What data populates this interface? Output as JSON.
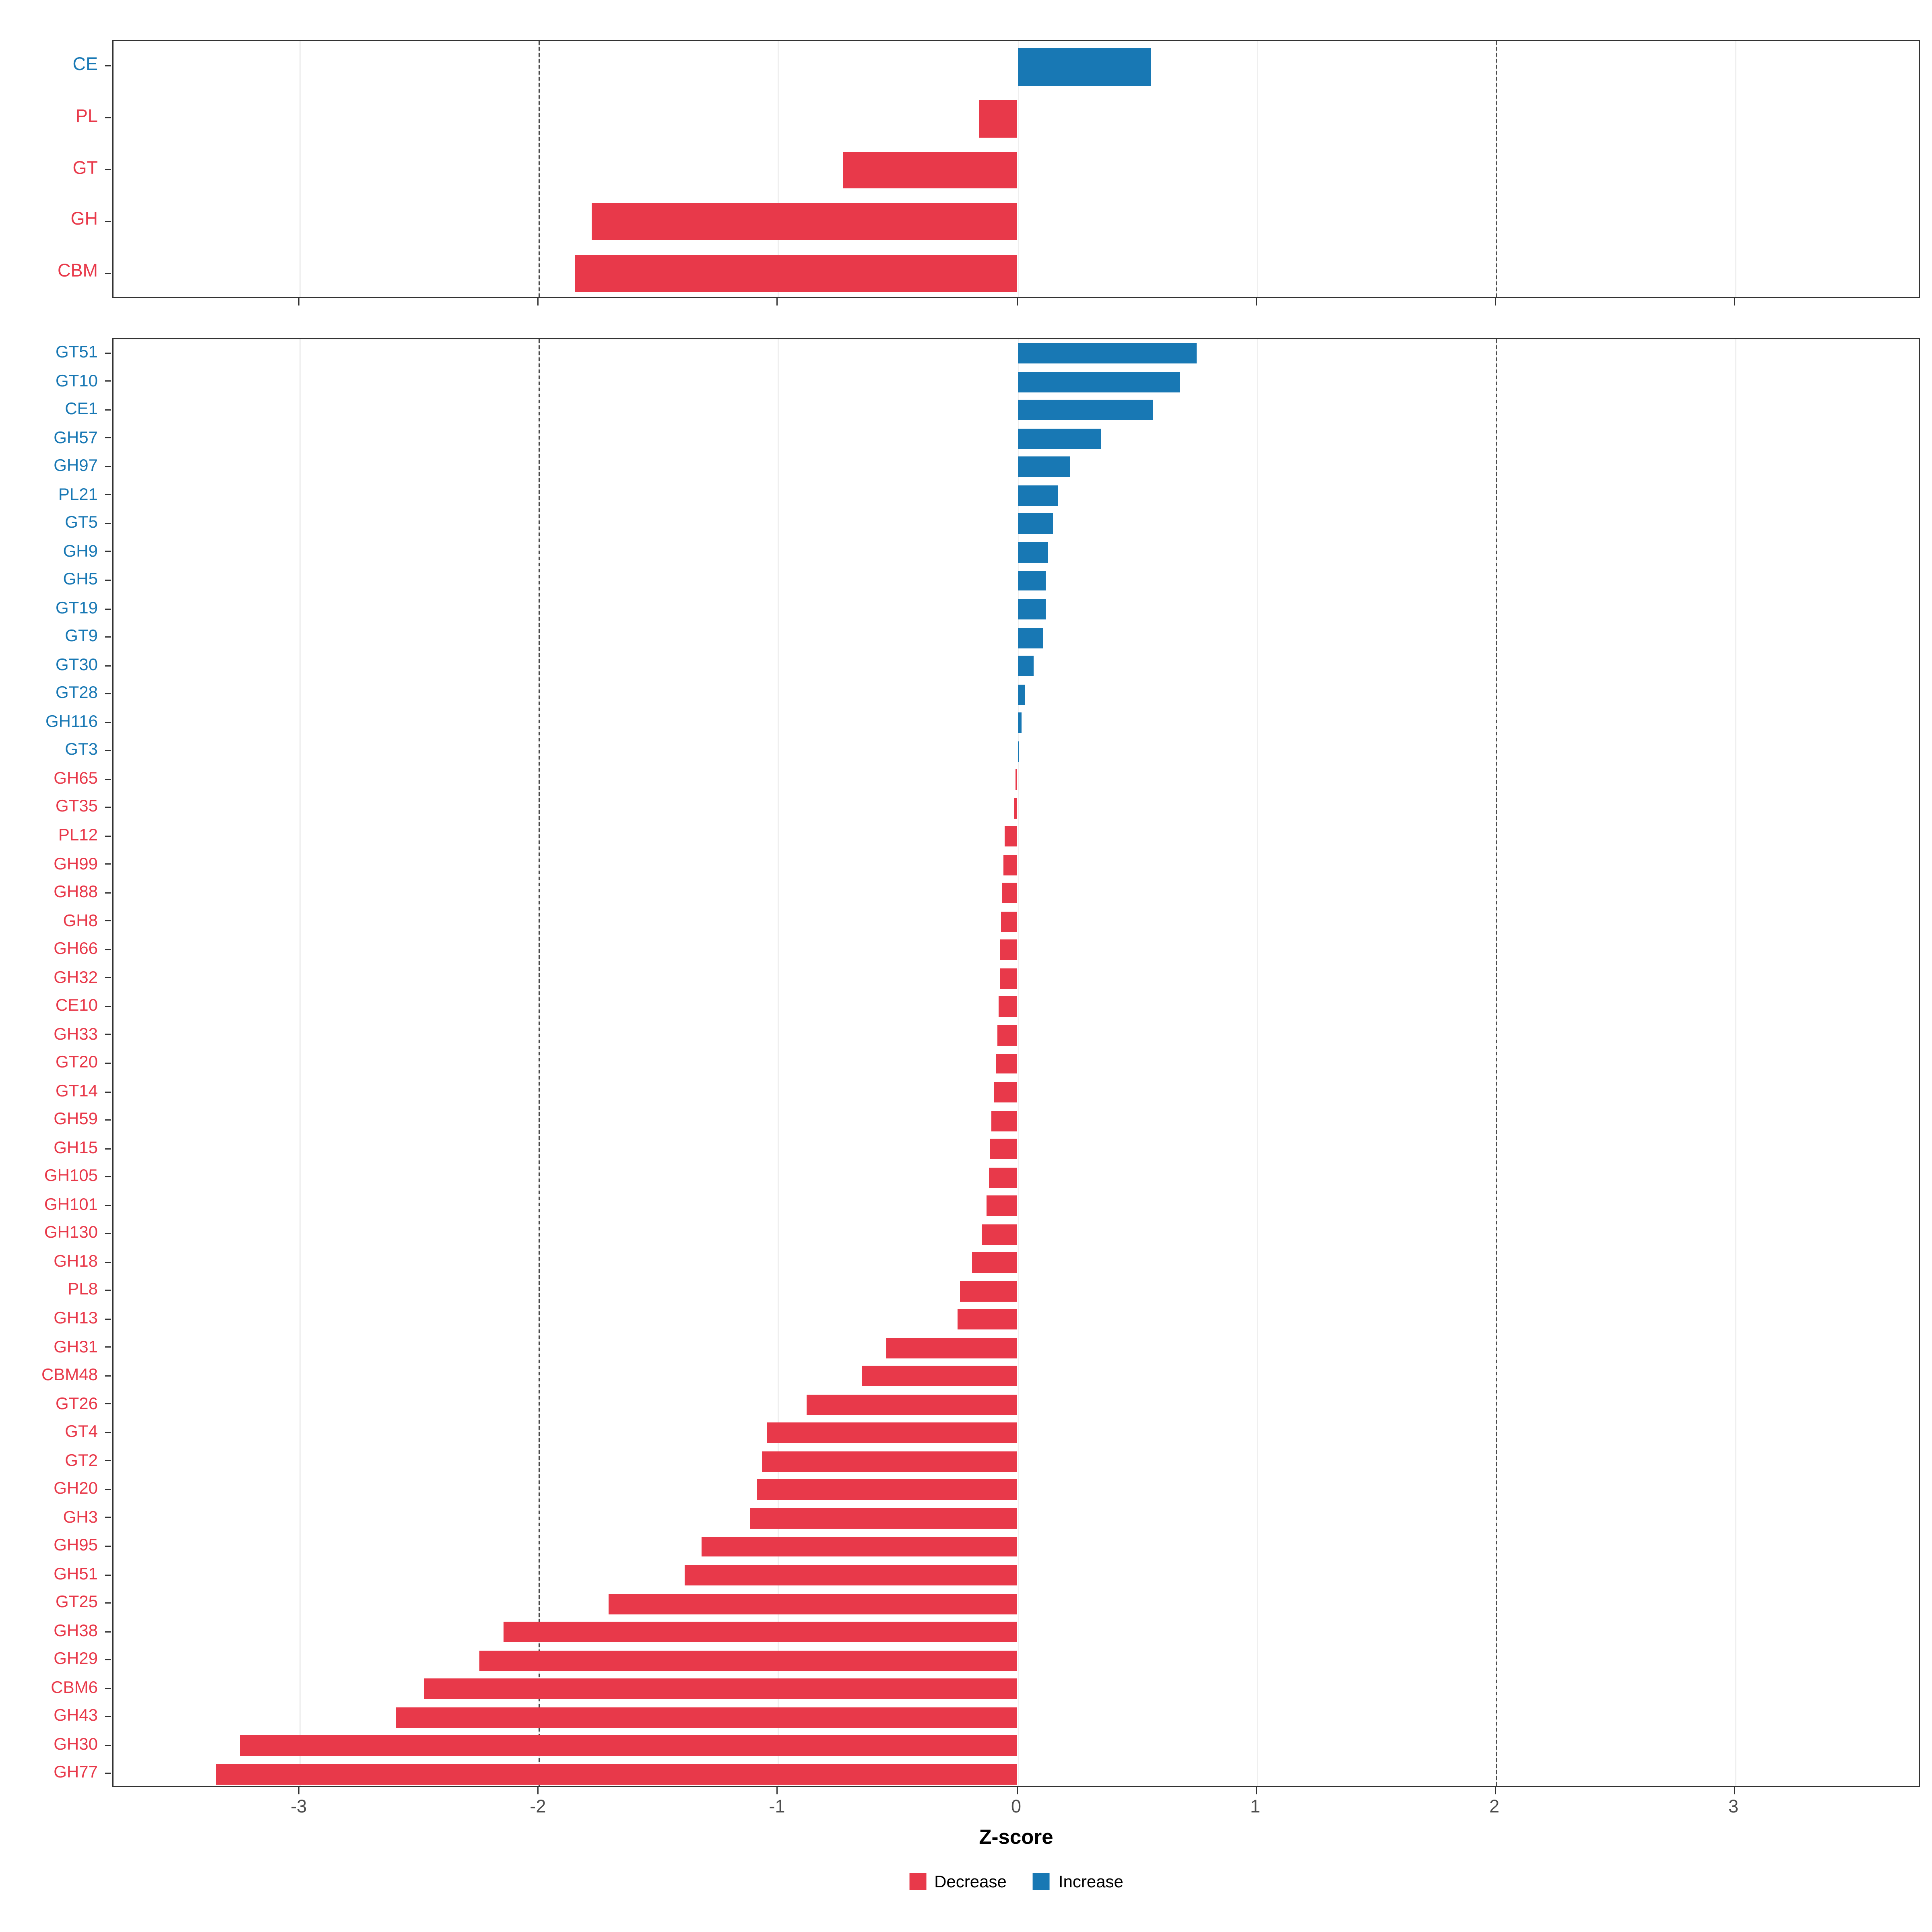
{
  "colors": {
    "decrease": "#e8394a",
    "increase": "#1878b4",
    "panel_border": "#333333",
    "dashed_line": "#4a4a4a"
  },
  "legend": {
    "items": [
      {
        "label": "Decrease",
        "color": "#e8394a"
      },
      {
        "label": "Increase",
        "color": "#1878b4"
      }
    ]
  },
  "chart_data": [
    {
      "type": "bar",
      "orientation": "horizontal",
      "title": "",
      "xlabel": "",
      "ylabel": "",
      "categories": [
        "CE",
        "PL",
        "GT",
        "GH",
        "CBM"
      ],
      "values": [
        0.56,
        -0.16,
        -0.73,
        -1.78,
        -1.85
      ],
      "xlim": [
        -3.78,
        3.78
      ],
      "xticks": [
        -3,
        -2,
        -1,
        0,
        1,
        2,
        3
      ],
      "xtick_labels": [
        "-3",
        "-2",
        "-1",
        "0",
        "1",
        "2",
        "3"
      ],
      "dashed_lines": [
        -2,
        2
      ],
      "grid": true,
      "legend_position": "none"
    },
    {
      "type": "bar",
      "orientation": "horizontal",
      "title": "",
      "xlabel": "Z-score",
      "ylabel": "",
      "categories": [
        "GT51",
        "GT10",
        "CE1",
        "GH57",
        "GH97",
        "PL21",
        "GT5",
        "GH9",
        "GH5",
        "GT19",
        "GT9",
        "GT30",
        "GT28",
        "GH116",
        "GT3",
        "GH65",
        "GT35",
        "PL12",
        "GH99",
        "GH88",
        "GH8",
        "GH66",
        "GH32",
        "CE10",
        "GH33",
        "GT20",
        "GT14",
        "GH59",
        "GH15",
        "GH105",
        "GH101",
        "GH130",
        "GH18",
        "PL8",
        "GH13",
        "GH31",
        "CBM48",
        "GT26",
        "GT4",
        "GT2",
        "GH20",
        "GH3",
        "GH95",
        "GH51",
        "GT25",
        "GH38",
        "GH29",
        "CBM6",
        "GH43",
        "GH30",
        "GH77"
      ],
      "values": [
        0.75,
        0.68,
        0.57,
        0.35,
        0.22,
        0.17,
        0.15,
        0.13,
        0.12,
        0.12,
        0.11,
        0.07,
        0.035,
        0.02,
        0.008,
        -0.008,
        -0.015,
        -0.055,
        -0.06,
        -0.065,
        -0.07,
        -0.075,
        -0.075,
        -0.08,
        -0.085,
        -0.09,
        -0.1,
        -0.11,
        -0.115,
        -0.12,
        -0.13,
        -0.15,
        -0.19,
        -0.24,
        -0.25,
        -0.55,
        -0.65,
        -0.88,
        -1.05,
        -1.07,
        -1.09,
        -1.12,
        -1.32,
        -1.39,
        -1.71,
        -2.15,
        -2.25,
        -2.48,
        -2.6,
        -3.25,
        -3.35
      ],
      "xlim": [
        -3.78,
        3.78
      ],
      "xticks": [
        -3,
        -2,
        -1,
        0,
        1,
        2,
        3
      ],
      "xtick_labels": [
        "-3",
        "-2",
        "-1",
        "0",
        "1",
        "2",
        "3"
      ],
      "dashed_lines": [
        -2,
        2
      ],
      "grid": true,
      "legend_position": "bottom"
    }
  ]
}
